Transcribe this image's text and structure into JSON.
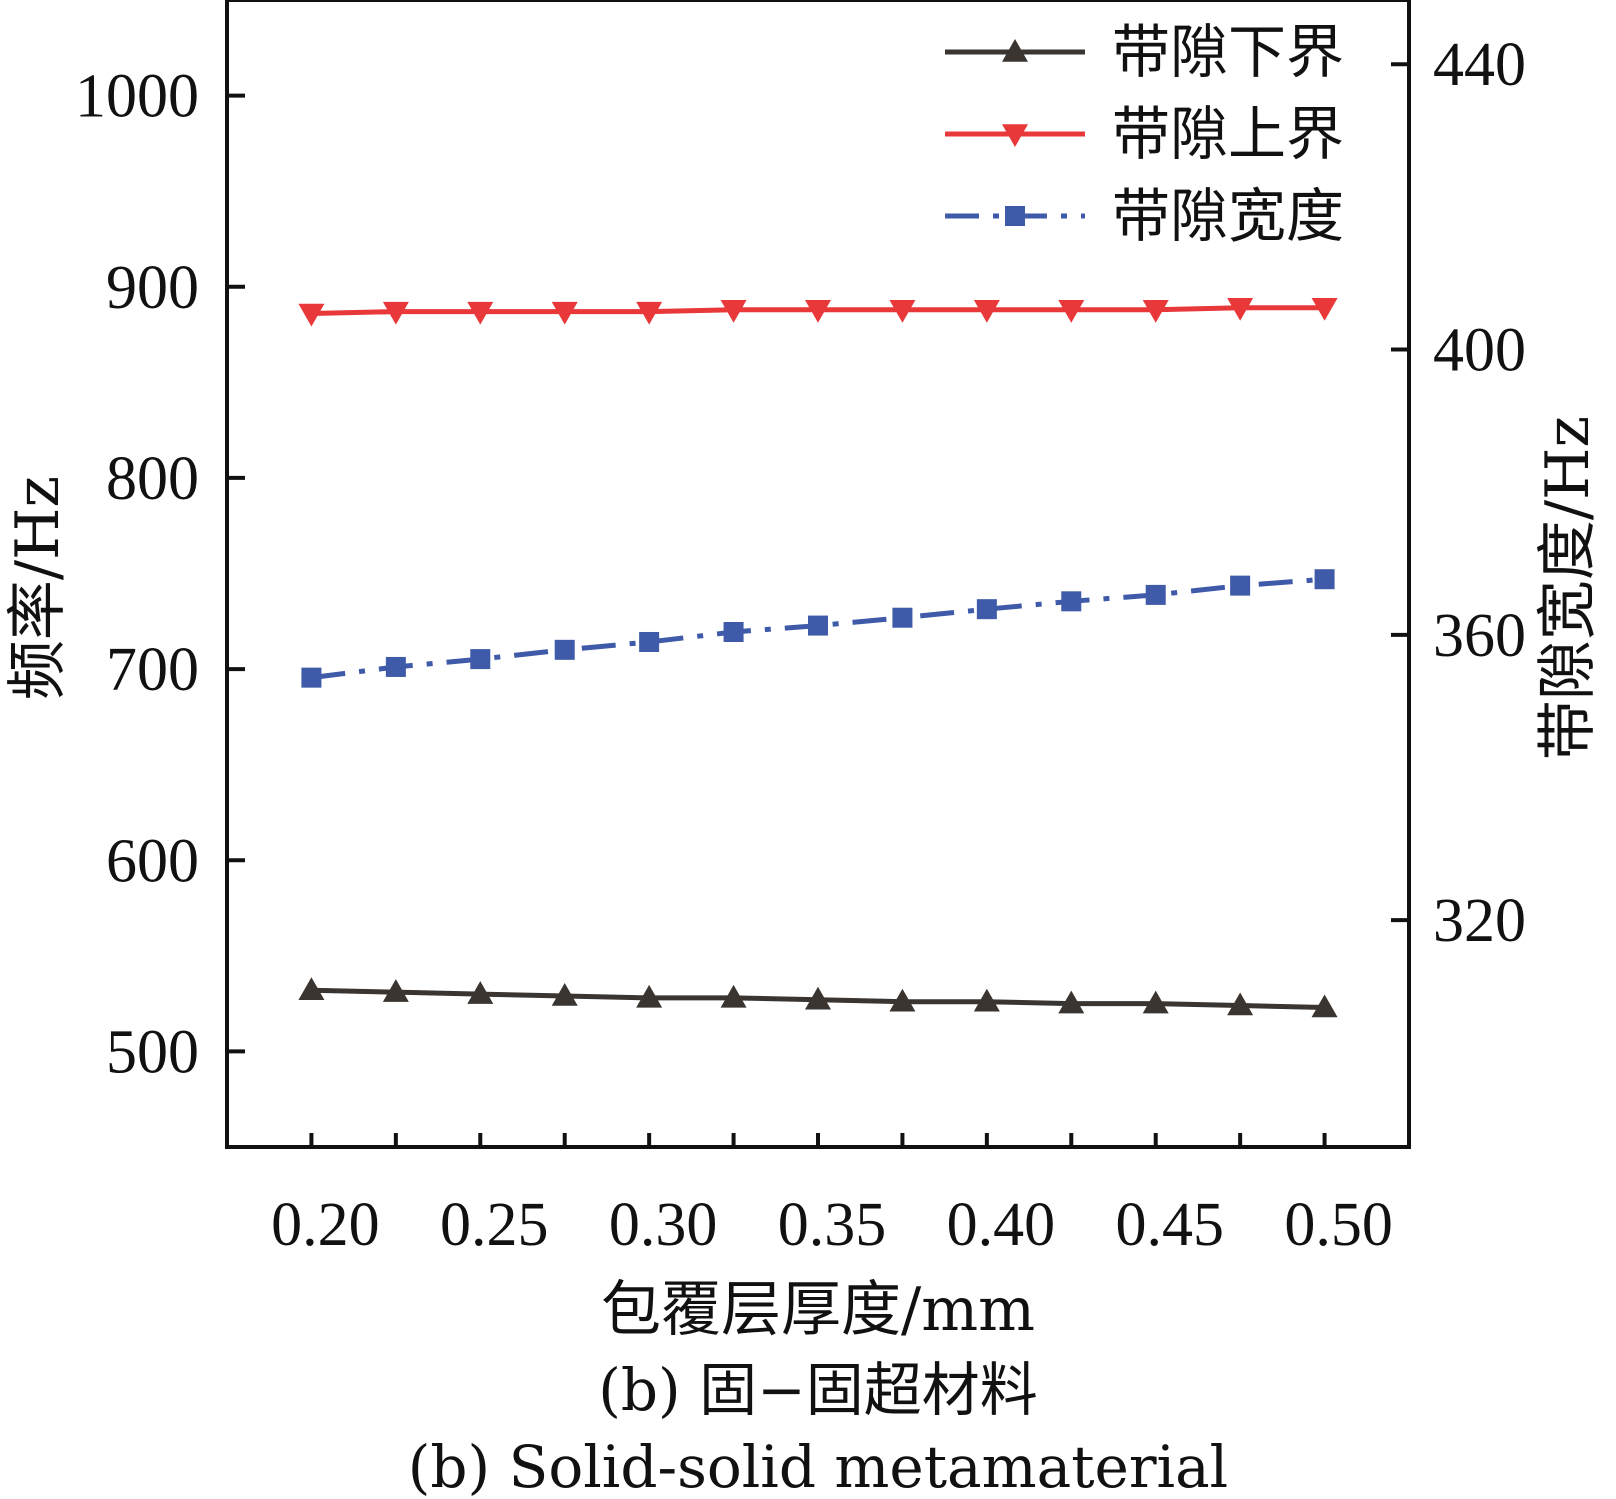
{
  "chart_data": {
    "type": "line",
    "x_label": "包覆层厚度/mm",
    "y_left_label": "频率/Hz",
    "y_right_label": "带隙宽度/Hz",
    "x_ticks": [
      "0.20",
      "0.25",
      "0.30",
      "0.35",
      "0.40",
      "0.45",
      "0.50"
    ],
    "x_range": [
      0.175,
      0.525
    ],
    "y_left_ticks": [
      "500",
      "600",
      "700",
      "800",
      "900",
      "1000"
    ],
    "y_left_range": [
      450,
      1050
    ],
    "y_right_ticks": [
      "320",
      "360",
      "400",
      "440"
    ],
    "y_right_range": [
      288.2,
      449.0
    ],
    "x": [
      0.2,
      0.225,
      0.25,
      0.275,
      0.3,
      0.325,
      0.35,
      0.375,
      0.4,
      0.425,
      0.45,
      0.475,
      0.5
    ],
    "series": [
      {
        "name": "带隙下界",
        "axis": "left",
        "color": "#3a3531",
        "marker": "triangle-up",
        "line_style": "solid",
        "values": [
          532,
          531,
          530,
          529,
          528,
          528,
          527,
          526,
          526,
          525,
          525,
          524,
          523
        ]
      },
      {
        "name": "带隙上界",
        "axis": "left",
        "color": "#e8383a",
        "marker": "triangle-down",
        "line_style": "solid",
        "values": [
          886,
          887,
          887,
          887,
          887,
          888,
          888,
          888,
          888,
          888,
          888,
          889,
          889
        ]
      },
      {
        "name": "带隙宽度",
        "axis": "right",
        "color": "#3e5aa8",
        "marker": "square",
        "line_style": "dashdot",
        "values": [
          354.0,
          355.5,
          356.6,
          357.9,
          359.0,
          360.4,
          361.3,
          362.4,
          363.6,
          364.7,
          365.6,
          366.9,
          367.8
        ]
      }
    ],
    "legend_position": "top-right",
    "grid": false
  },
  "captions": {
    "line1": "(b) 固−固超材料",
    "line2": "(b) Solid-solid metamaterial"
  }
}
